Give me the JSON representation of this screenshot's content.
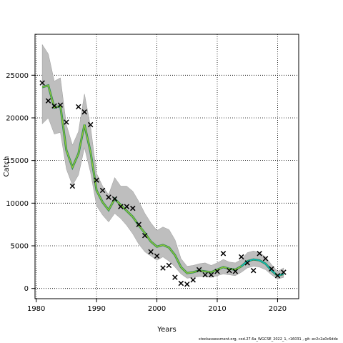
{
  "caption": "stockassessment.org,  cod.27.6a_WGCSE_2022_1, r16031 , git: ec2c2a0c6dde",
  "chart_data": {
    "type": "line",
    "xlabel": "Years",
    "ylabel": "Catch",
    "xlim": [
      1979.8,
      2023.5
    ],
    "ylim": [
      -1200,
      29800
    ],
    "x_ticks": [
      1980,
      1990,
      2000,
      2010,
      2020
    ],
    "y_ticks": [
      0,
      5000,
      10000,
      15000,
      20000,
      25000
    ],
    "grid": true,
    "grid_style": "dotted",
    "colors": {
      "band": "#bebebe",
      "estimate_line": "#2e8b57",
      "estimate_overlay": "#9acd32",
      "estimate_recent": "#00bcd4",
      "observed_marker": "#000000"
    },
    "years": [
      1981,
      1982,
      1983,
      1984,
      1985,
      1986,
      1987,
      1988,
      1989,
      1990,
      1991,
      1992,
      1993,
      1994,
      1995,
      1996,
      1997,
      1998,
      1999,
      2000,
      2001,
      2002,
      2003,
      2004,
      2005,
      2006,
      2007,
      2008,
      2009,
      2010,
      2011,
      2012,
      2013,
      2014,
      2015,
      2016,
      2017,
      2018,
      2019,
      2020,
      2021
    ],
    "estimate": [
      23600,
      23800,
      21200,
      21400,
      16200,
      14200,
      15800,
      19200,
      16000,
      11500,
      10100,
      9200,
      10500,
      9800,
      9100,
      8400,
      7400,
      6500,
      5500,
      4900,
      5100,
      4800,
      3900,
      2500,
      1800,
      1900,
      2100,
      2000,
      1900,
      2200,
      2500,
      2300,
      2200,
      2600,
      3200,
      3400,
      3300,
      2900,
      2100,
      1500,
      1700
    ],
    "upper": [
      28600,
      27500,
      24300,
      24700,
      19200,
      16800,
      18400,
      22800,
      19000,
      13500,
      12000,
      11000,
      13000,
      12000,
      12000,
      11400,
      10200,
      8800,
      7700,
      6800,
      7200,
      6900,
      5700,
      3500,
      2600,
      2700,
      2900,
      3000,
      2700,
      3000,
      3400,
      3100,
      3000,
      3400,
      4200,
      4400,
      4200,
      3700,
      2800,
      2000,
      2400
    ],
    "lower": [
      19300,
      20000,
      18100,
      18300,
      14000,
      12100,
      13300,
      16500,
      13600,
      9700,
      8600,
      7800,
      8800,
      8200,
      7400,
      6400,
      5200,
      4300,
      3800,
      3300,
      3700,
      3200,
      2500,
      1700,
      1200,
      1300,
      1400,
      1400,
      1300,
      1500,
      1700,
      1600,
      1500,
      1900,
      2400,
      2600,
      2500,
      2200,
      1600,
      1100,
      1300
    ],
    "observed_x": [
      1981,
      1982,
      1983,
      1984,
      1985,
      1986,
      1987,
      1988,
      1989,
      1990,
      1991,
      1992,
      1993,
      1994,
      1995,
      1996,
      1997,
      1998,
      1999,
      2000,
      2001,
      2002,
      2003,
      2004,
      2005,
      2006,
      2007,
      2008,
      2009,
      2010,
      2011,
      2012,
      2013,
      2014,
      2015,
      2016,
      2017,
      2018,
      2019,
      2020,
      2021
    ],
    "observed": [
      24100,
      22000,
      21400,
      21500,
      19500,
      12000,
      21300,
      20700,
      19200,
      12700,
      11500,
      10700,
      10500,
      9600,
      9600,
      9400,
      7500,
      6200,
      4300,
      3800,
      2400,
      2700,
      1300,
      600,
      500,
      1000,
      2200,
      1600,
      1600,
      2000,
      4100,
      2100,
      2000,
      3700,
      3000,
      2100,
      4100,
      3500,
      2300,
      1500,
      1900
    ]
  }
}
